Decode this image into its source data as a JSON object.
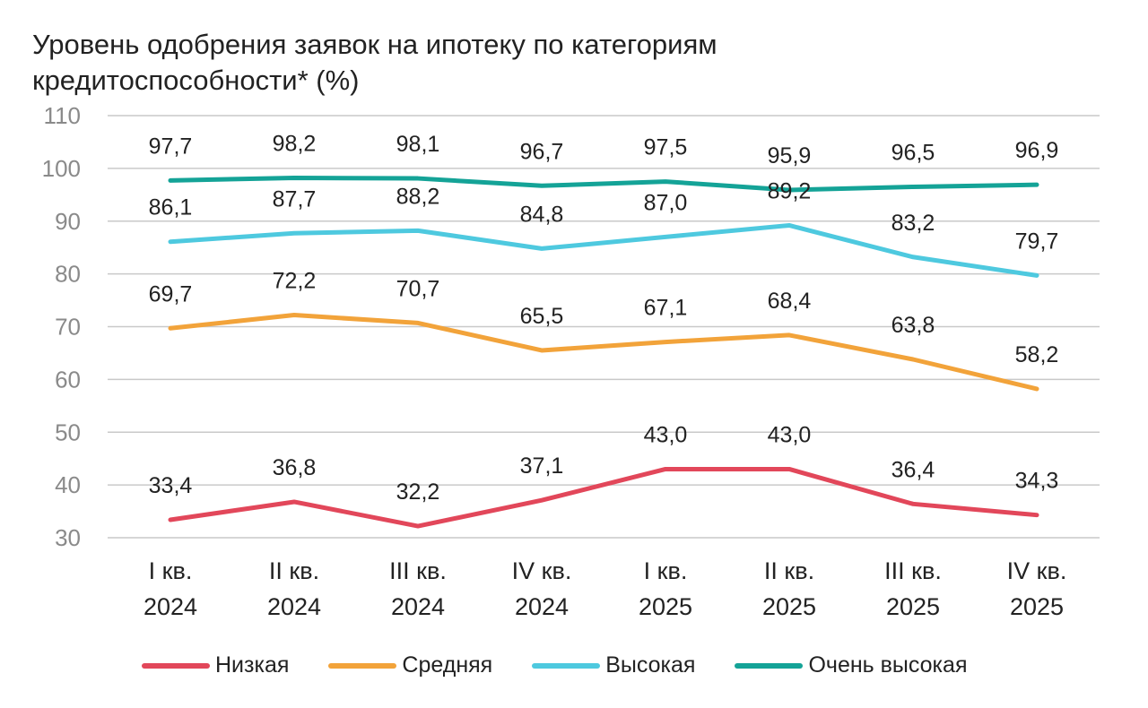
{
  "chart_data": {
    "type": "line",
    "title": "Уровень одобрения заявок на ипотеку по категориям кредитоспособности* (%)",
    "title_lines": [
      "Уровень одобрения заявок на ипотеку по категориям",
      "кредитоспособности* (%)"
    ],
    "categories": [
      [
        "I кв.",
        "2024"
      ],
      [
        "II кв.",
        "2024"
      ],
      [
        "III кв.",
        "2024"
      ],
      [
        "IV кв.",
        "2024"
      ],
      [
        "I кв.",
        "2025"
      ],
      [
        "II кв.",
        "2025"
      ],
      [
        "III кв.",
        "2025"
      ],
      [
        "IV кв.",
        "2025"
      ]
    ],
    "y_ticks": [
      "110",
      "100",
      "90",
      "80",
      "70",
      "60",
      "50",
      "40",
      "30"
    ],
    "ylim": [
      30,
      110
    ],
    "grid": true,
    "legend_position": "bottom",
    "series": [
      {
        "name": "Низкая",
        "color": "#e2475a",
        "values": [
          33.4,
          36.8,
          32.2,
          37.1,
          43.0,
          43.0,
          36.4,
          34.3
        ],
        "labels": [
          "33,4",
          "36,8",
          "32,2",
          "37,1",
          "43,0",
          "43,0",
          "36,4",
          "34,3"
        ]
      },
      {
        "name": "Средняя",
        "color": "#f2a33a",
        "values": [
          69.7,
          72.2,
          70.7,
          65.5,
          67.1,
          68.4,
          63.8,
          58.2
        ],
        "labels": [
          "69,7",
          "72,2",
          "70,7",
          "65,5",
          "67,1",
          "68,4",
          "63,8",
          "58,2"
        ]
      },
      {
        "name": "Высокая",
        "color": "#4ec9df",
        "values": [
          86.1,
          87.7,
          88.2,
          84.8,
          87.0,
          89.2,
          83.2,
          79.7
        ],
        "labels": [
          "86,1",
          "87,7",
          "88,2",
          "84,8",
          "87,0",
          "89,2",
          "83,2",
          "79,7"
        ]
      },
      {
        "name": "Очень высокая",
        "color": "#14a397",
        "values": [
          97.7,
          98.2,
          98.1,
          96.7,
          97.5,
          95.9,
          96.5,
          96.9
        ],
        "labels": [
          "97,7",
          "98,2",
          "98,1",
          "96,7",
          "97,5",
          "95,9",
          "96,5",
          "96,9"
        ]
      }
    ]
  }
}
